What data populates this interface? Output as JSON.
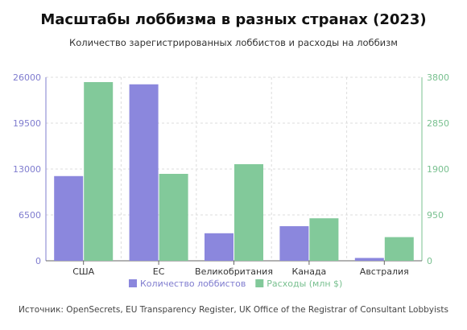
{
  "title": "Масштабы лоббизма в разных странах (2023)",
  "subtitle": "Количество зарегистрированных лоббистов и расходы на лоббизм",
  "source": "Источник: OpenSecrets, EU Transparency Register, UK Office of the Registrar of Consultant Lobbyists",
  "colors": {
    "lobbyists": "#8b87dd",
    "spending": "#82c99a",
    "left_axis": "#7f7ccf",
    "right_axis": "#78c08f",
    "grid": "#dddddd"
  },
  "chart_data": {
    "type": "bar",
    "categories": [
      "США",
      "ЕС",
      "Великобритания",
      "Канада",
      "Австралия"
    ],
    "series": [
      {
        "name": "Количество лоббистов",
        "axis": "left",
        "values": [
          12000,
          25000,
          3900,
          4900,
          400
        ]
      },
      {
        "name": "Расходы (млн $)",
        "axis": "right",
        "values": [
          3700,
          1800,
          2000,
          880,
          490
        ]
      }
    ],
    "y_left": {
      "ticks": [
        "0",
        "6500",
        "13000",
        "19500",
        "26000"
      ],
      "ylim": [
        0,
        26000
      ]
    },
    "y_right": {
      "ticks": [
        "0",
        "950",
        "1900",
        "2850",
        "3800"
      ],
      "ylim": [
        0,
        3800
      ]
    },
    "grid": true,
    "legend_position": "bottom"
  }
}
